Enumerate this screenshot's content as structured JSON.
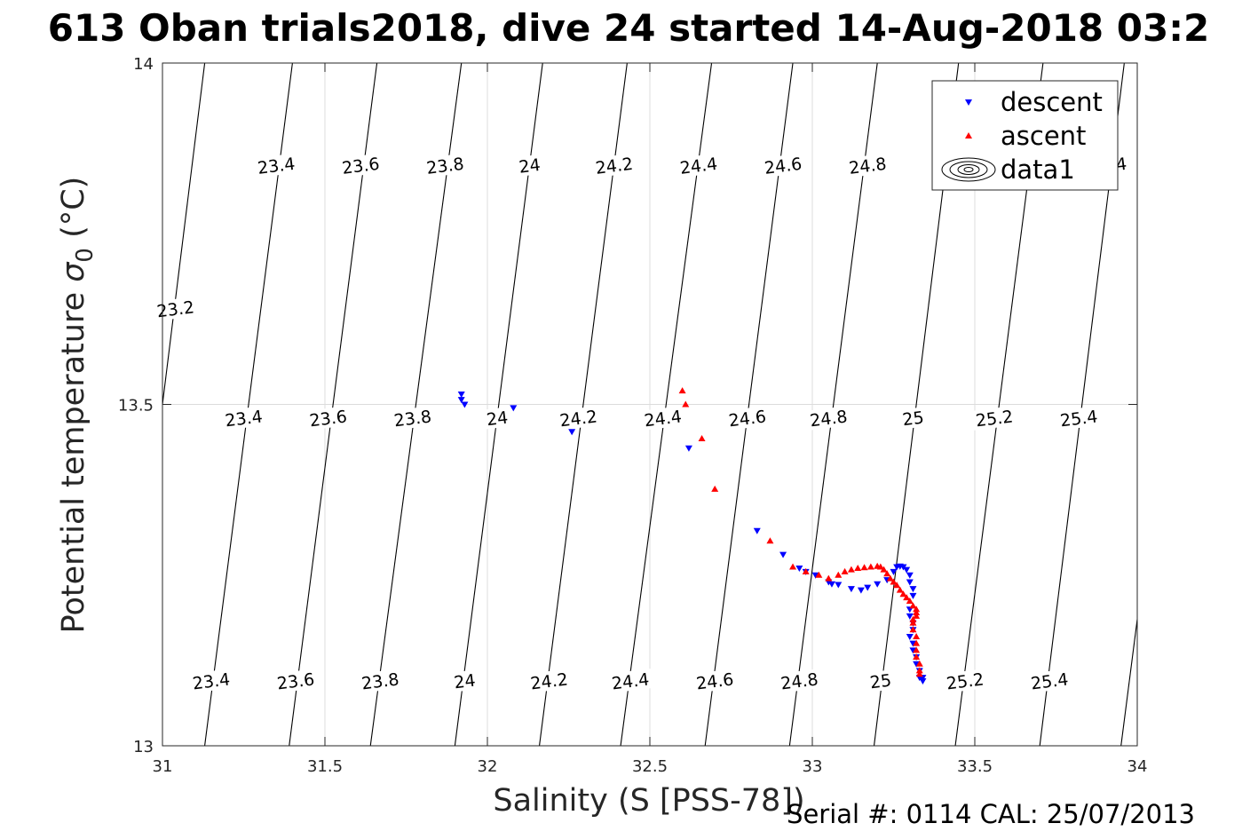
{
  "title": "613 Oban trials2018, dive 24 started 14-Aug-2018 03:2",
  "footer": "Serial #: 0114  CAL: 25/07/2013",
  "chart_data": {
    "type": "scatter",
    "xlabel": "Salinity (S [PSS-78])",
    "ylabel_prefix": "Potential temperature ",
    "ylabel_sigma": "σ",
    "ylabel_sub": "0",
    "ylabel_suffix": " (°C)",
    "xlim": [
      31,
      34
    ],
    "ylim": [
      13,
      14
    ],
    "grid": true,
    "x_ticks": [
      31,
      31.5,
      32,
      32.5,
      33,
      33.5,
      34
    ],
    "x_tick_labels": [
      "31",
      "31.5",
      "32",
      "32.5",
      "33",
      "33.5",
      "34"
    ],
    "y_ticks": [
      13,
      13.5,
      14
    ],
    "y_tick_labels": [
      "13",
      "13.5",
      "14"
    ],
    "legend": {
      "position": "top-right",
      "entries": [
        {
          "label": "descent",
          "marker": "triangle-down",
          "color": "#0000ff"
        },
        {
          "label": "ascent",
          "marker": "triangle-up",
          "color": "#ff0000"
        },
        {
          "label": "data1",
          "marker": "contour",
          "color": "#000000"
        }
      ]
    },
    "density_contours": {
      "s_at_top": [
        31.13,
        31.4,
        31.66,
        31.92,
        32.17,
        32.43,
        32.69,
        32.94,
        33.2,
        33.45,
        33.71,
        33.96,
        34.22,
        34.47
      ],
      "s_at_bottom": [
        30.87,
        31.13,
        31.39,
        31.64,
        31.9,
        32.16,
        32.41,
        32.67,
        32.93,
        33.19,
        33.44,
        33.7,
        33.95,
        34.21
      ],
      "labels_top": [
        {
          "text": "23.2",
          "s": 31.04,
          "t": 13.64
        },
        {
          "text": "23.4",
          "s": 31.35,
          "t": 13.85
        },
        {
          "text": "23.6",
          "s": 31.61,
          "t": 13.85
        },
        {
          "text": "23.8",
          "s": 31.87,
          "t": 13.85
        },
        {
          "text": "24",
          "s": 32.13,
          "t": 13.85
        },
        {
          "text": "24.2",
          "s": 32.39,
          "t": 13.85
        },
        {
          "text": "24.4",
          "s": 32.65,
          "t": 13.85
        },
        {
          "text": "24.6",
          "s": 32.91,
          "t": 13.85
        },
        {
          "text": "24.8",
          "s": 33.17,
          "t": 13.85
        },
        {
          "text": "25.4",
          "s": 33.91,
          "t": 13.85
        }
      ],
      "labels_mid": [
        {
          "text": "23.4",
          "s": 31.25,
          "t": 13.48
        },
        {
          "text": "23.6",
          "s": 31.51,
          "t": 13.48
        },
        {
          "text": "23.8",
          "s": 31.77,
          "t": 13.48
        },
        {
          "text": "24",
          "s": 32.03,
          "t": 13.48
        },
        {
          "text": "24.2",
          "s": 32.28,
          "t": 13.48
        },
        {
          "text": "24.4",
          "s": 32.54,
          "t": 13.48
        },
        {
          "text": "24.6",
          "s": 32.8,
          "t": 13.48
        },
        {
          "text": "24.8",
          "s": 33.05,
          "t": 13.48
        },
        {
          "text": "25",
          "s": 33.31,
          "t": 13.48
        },
        {
          "text": "25.2",
          "s": 33.56,
          "t": 13.48
        },
        {
          "text": "25.4",
          "s": 33.82,
          "t": 13.48
        }
      ],
      "labels_bottom": [
        {
          "text": "23.4",
          "s": 31.15,
          "t": 13.095
        },
        {
          "text": "23.6",
          "s": 31.41,
          "t": 13.095
        },
        {
          "text": "23.8",
          "s": 31.67,
          "t": 13.095
        },
        {
          "text": "24",
          "s": 31.93,
          "t": 13.095
        },
        {
          "text": "24.2",
          "s": 32.19,
          "t": 13.095
        },
        {
          "text": "24.4",
          "s": 32.44,
          "t": 13.095
        },
        {
          "text": "24.6",
          "s": 32.7,
          "t": 13.095
        },
        {
          "text": "24.8",
          "s": 32.96,
          "t": 13.095
        },
        {
          "text": "25",
          "s": 33.21,
          "t": 13.095
        },
        {
          "text": "25.2",
          "s": 33.47,
          "t": 13.095
        },
        {
          "text": "25.4",
          "s": 33.73,
          "t": 13.095
        }
      ]
    },
    "series": [
      {
        "name": "descent",
        "color": "#0000ff",
        "marker": "triangle-down",
        "points": [
          [
            31.92,
            13.515
          ],
          [
            31.92,
            13.507
          ],
          [
            31.93,
            13.5
          ],
          [
            32.08,
            13.495
          ],
          [
            32.26,
            13.46
          ],
          [
            32.62,
            13.436
          ],
          [
            32.83,
            13.315
          ],
          [
            32.91,
            13.28
          ],
          [
            32.96,
            13.26
          ],
          [
            32.98,
            13.255
          ],
          [
            33.01,
            13.25
          ],
          [
            33.05,
            13.24
          ],
          [
            33.06,
            13.237
          ],
          [
            33.08,
            13.236
          ],
          [
            33.12,
            13.23
          ],
          [
            33.15,
            13.228
          ],
          [
            33.17,
            13.232
          ],
          [
            33.2,
            13.237
          ],
          [
            33.23,
            13.243
          ],
          [
            33.25,
            13.255
          ],
          [
            33.26,
            13.262
          ],
          [
            33.27,
            13.263
          ],
          [
            33.28,
            13.262
          ],
          [
            33.29,
            13.258
          ],
          [
            33.3,
            13.25
          ],
          [
            33.3,
            13.24
          ],
          [
            33.31,
            13.23
          ],
          [
            33.31,
            13.22
          ],
          [
            33.3,
            13.2
          ],
          [
            33.3,
            13.19
          ],
          [
            33.31,
            13.18
          ],
          [
            33.31,
            13.17
          ],
          [
            33.3,
            13.16
          ],
          [
            33.31,
            13.15
          ],
          [
            33.31,
            13.14
          ],
          [
            33.32,
            13.13
          ],
          [
            33.32,
            13.12
          ],
          [
            33.33,
            13.11
          ],
          [
            33.33,
            13.1
          ],
          [
            33.34,
            13.095
          ],
          [
            33.34,
            13.1
          ]
        ]
      },
      {
        "name": "ascent",
        "color": "#ff0000",
        "marker": "triangle-up",
        "points": [
          [
            32.6,
            13.52
          ],
          [
            32.61,
            13.5
          ],
          [
            32.66,
            13.45
          ],
          [
            32.7,
            13.376
          ],
          [
            32.87,
            13.3
          ],
          [
            32.94,
            13.262
          ],
          [
            32.98,
            13.255
          ],
          [
            33.02,
            13.25
          ],
          [
            33.05,
            13.245
          ],
          [
            33.08,
            13.25
          ],
          [
            33.1,
            13.255
          ],
          [
            33.12,
            13.258
          ],
          [
            33.14,
            13.26
          ],
          [
            33.16,
            13.261
          ],
          [
            33.18,
            13.262
          ],
          [
            33.2,
            13.263
          ],
          [
            33.21,
            13.262
          ],
          [
            33.22,
            13.258
          ],
          [
            33.23,
            13.252
          ],
          [
            33.24,
            13.245
          ],
          [
            33.25,
            13.24
          ],
          [
            33.26,
            13.235
          ],
          [
            33.27,
            13.228
          ],
          [
            33.28,
            13.222
          ],
          [
            33.29,
            13.217
          ],
          [
            33.3,
            13.212
          ],
          [
            33.31,
            13.205
          ],
          [
            33.32,
            13.2
          ],
          [
            33.32,
            13.195
          ],
          [
            33.32,
            13.19
          ],
          [
            33.31,
            13.185
          ],
          [
            33.31,
            13.18
          ],
          [
            33.31,
            13.17
          ],
          [
            33.32,
            13.16
          ],
          [
            33.32,
            13.15
          ],
          [
            33.32,
            13.14
          ],
          [
            33.32,
            13.13
          ],
          [
            33.33,
            13.12
          ],
          [
            33.33,
            13.11
          ],
          [
            33.33,
            13.105
          ]
        ]
      }
    ]
  }
}
